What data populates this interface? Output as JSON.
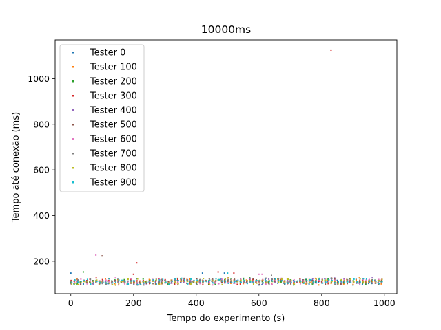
{
  "chart_data": {
    "type": "scatter",
    "title": "10000ms",
    "xlabel": "Tempo do experimento (s)",
    "ylabel": "Tempo até conexão (ms)",
    "xlim": [
      -50,
      1040
    ],
    "ylim": [
      58,
      1170
    ],
    "xticks": [
      0,
      200,
      400,
      600,
      800,
      1000
    ],
    "yticks": [
      200,
      400,
      600,
      800,
      1000
    ],
    "legend_position": "upper-left",
    "grid": false,
    "series": [
      {
        "name": "Tester 0",
        "color": "#1f77b4",
        "seed": 11,
        "x_offset": 0,
        "outliers": [
          [
            0,
            148
          ],
          [
            420,
            148
          ],
          [
            490,
            148
          ]
        ]
      },
      {
        "name": "Tester 100",
        "color": "#ff7f0e",
        "seed": 23,
        "x_offset": 1,
        "outliers": []
      },
      {
        "name": "Tester 200",
        "color": "#2ca02c",
        "seed": 37,
        "x_offset": 2,
        "outliers": [
          [
            40,
            153
          ],
          [
            440,
            98
          ]
        ]
      },
      {
        "name": "Tester 300",
        "color": "#d62728",
        "seed": 41,
        "x_offset": 3,
        "outliers": [
          [
            830,
            1125
          ],
          [
            210,
            193
          ],
          [
            200,
            143
          ],
          [
            470,
            153
          ],
          [
            520,
            148
          ]
        ]
      },
      {
        "name": "Tester 400",
        "color": "#9467bd",
        "seed": 53,
        "x_offset": 4,
        "outliers": []
      },
      {
        "name": "Tester 500",
        "color": "#8c564b",
        "seed": 67,
        "x_offset": 5,
        "outliers": [
          [
            100,
            223
          ]
        ]
      },
      {
        "name": "Tester 600",
        "color": "#e377c2",
        "seed": 71,
        "x_offset": 6,
        "outliers": [
          [
            80,
            227
          ],
          [
            600,
            143
          ],
          [
            610,
            143
          ]
        ]
      },
      {
        "name": "Tester 700",
        "color": "#7f7f7f",
        "seed": 83,
        "x_offset": 7,
        "outliers": [
          [
            640,
            138
          ]
        ]
      },
      {
        "name": "Tester 800",
        "color": "#bcbd22",
        "seed": 97,
        "x_offset": 8,
        "outliers": []
      },
      {
        "name": "Tester 900",
        "color": "#17becf",
        "seed": 101,
        "x_offset": 9,
        "outliers": [
          [
            500,
            148
          ]
        ]
      }
    ],
    "typical_range": [
      95,
      128
    ],
    "x_step": 10,
    "x_max": 990
  }
}
